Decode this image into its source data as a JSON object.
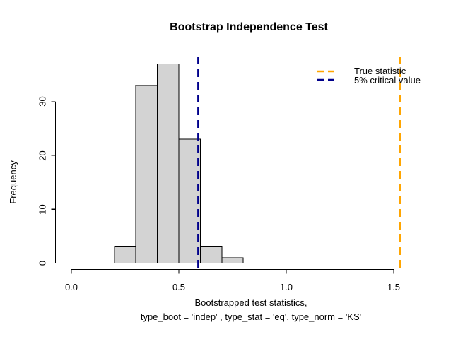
{
  "title": "Bootstrap Independence Test",
  "chart_data": {
    "type": "bar",
    "subtype": "histogram",
    "title": "Bootstrap Independence Test",
    "xlabel_line1": "Bootstrapped test statistics,",
    "xlabel_line2": "type_boot = 'indep' , type_stat = 'eq', type_norm = 'KS'",
    "ylabel": "Frequency",
    "bin_breaks": [
      0.2,
      0.3,
      0.4,
      0.5,
      0.6,
      0.7,
      0.8
    ],
    "counts": [
      3,
      33,
      37,
      23,
      3,
      1
    ],
    "total_samples": 100,
    "x_ticks": [
      {
        "v": 0.0,
        "label": "0.0"
      },
      {
        "v": 0.5,
        "label": "0.5"
      },
      {
        "v": 1.0,
        "label": "1.0"
      },
      {
        "v": 1.5,
        "label": "1.5"
      }
    ],
    "y_ticks": [
      {
        "v": 0,
        "label": "0"
      },
      {
        "v": 10,
        "label": "10"
      },
      {
        "v": 20,
        "label": "20"
      },
      {
        "v": 30,
        "label": "30"
      }
    ],
    "bar_fill": "#d3d3d3",
    "bar_stroke": "#000000",
    "axis_color": "#000000",
    "grid": false,
    "legend_position": "top-right",
    "vlines": [
      {
        "name": "true-statistic",
        "value": 1.53,
        "color": "#ffa500",
        "style": "dashed",
        "label": "True statistic"
      },
      {
        "name": "critical-value-5pct",
        "value": 0.59,
        "color": "#00008b",
        "style": "dashed",
        "label": "5% critical value"
      }
    ]
  }
}
